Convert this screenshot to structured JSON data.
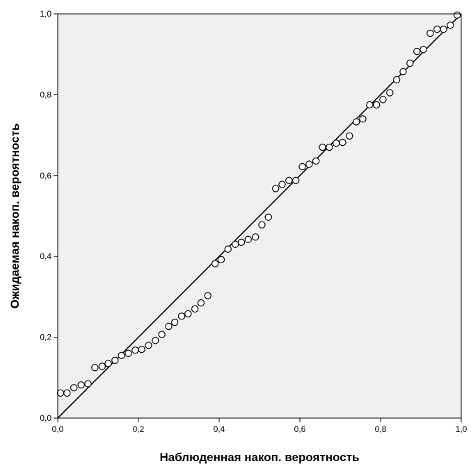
{
  "chart_data": {
    "type": "scatter",
    "title": "",
    "xlabel": "Наблюденная накоп. вероятность",
    "ylabel": "Ожидаемая накоп. вероятность",
    "xlim": [
      0,
      1
    ],
    "ylim": [
      0,
      1
    ],
    "x_ticks": [
      "0,0",
      "0,2",
      "0,4",
      "0,6",
      "0,8",
      "1,0"
    ],
    "y_ticks": [
      "0,0",
      "0,2",
      "0,4",
      "0,6",
      "0,8",
      "1,0"
    ],
    "grid": false,
    "reference_line": {
      "x": [
        0,
        1
      ],
      "y": [
        0,
        1
      ]
    },
    "colors": {
      "plot_background": "#f0f0f0",
      "marker_stroke": "#000000",
      "marker_fill": "#ffffff",
      "line": "#000000"
    },
    "points": {
      "x": [
        0.007,
        0.023,
        0.04,
        0.058,
        0.075,
        0.092,
        0.11,
        0.125,
        0.142,
        0.158,
        0.175,
        0.192,
        0.208,
        0.225,
        0.242,
        0.258,
        0.275,
        0.29,
        0.307,
        0.323,
        0.34,
        0.355,
        0.372,
        0.39,
        0.405,
        0.422,
        0.44,
        0.455,
        0.472,
        0.49,
        0.506,
        0.522,
        0.54,
        0.556,
        0.573,
        0.59,
        0.606,
        0.623,
        0.64,
        0.656,
        0.673,
        0.69,
        0.706,
        0.723,
        0.74,
        0.756,
        0.773,
        0.79,
        0.806,
        0.823,
        0.84,
        0.856,
        0.873,
        0.89,
        0.906,
        0.923,
        0.94,
        0.956,
        0.973,
        0.99
      ],
      "y": [
        0.062,
        0.062,
        0.075,
        0.082,
        0.085,
        0.125,
        0.128,
        0.135,
        0.143,
        0.155,
        0.16,
        0.168,
        0.17,
        0.18,
        0.192,
        0.207,
        0.227,
        0.237,
        0.252,
        0.258,
        0.27,
        0.285,
        0.303,
        0.382,
        0.392,
        0.418,
        0.43,
        0.435,
        0.442,
        0.448,
        0.478,
        0.497,
        0.568,
        0.578,
        0.588,
        0.588,
        0.622,
        0.628,
        0.636,
        0.67,
        0.67,
        0.68,
        0.682,
        0.698,
        0.733,
        0.74,
        0.775,
        0.775,
        0.788,
        0.805,
        0.837,
        0.857,
        0.878,
        0.907,
        0.912,
        0.952,
        0.962,
        0.962,
        0.972,
        0.997
      ]
    }
  }
}
